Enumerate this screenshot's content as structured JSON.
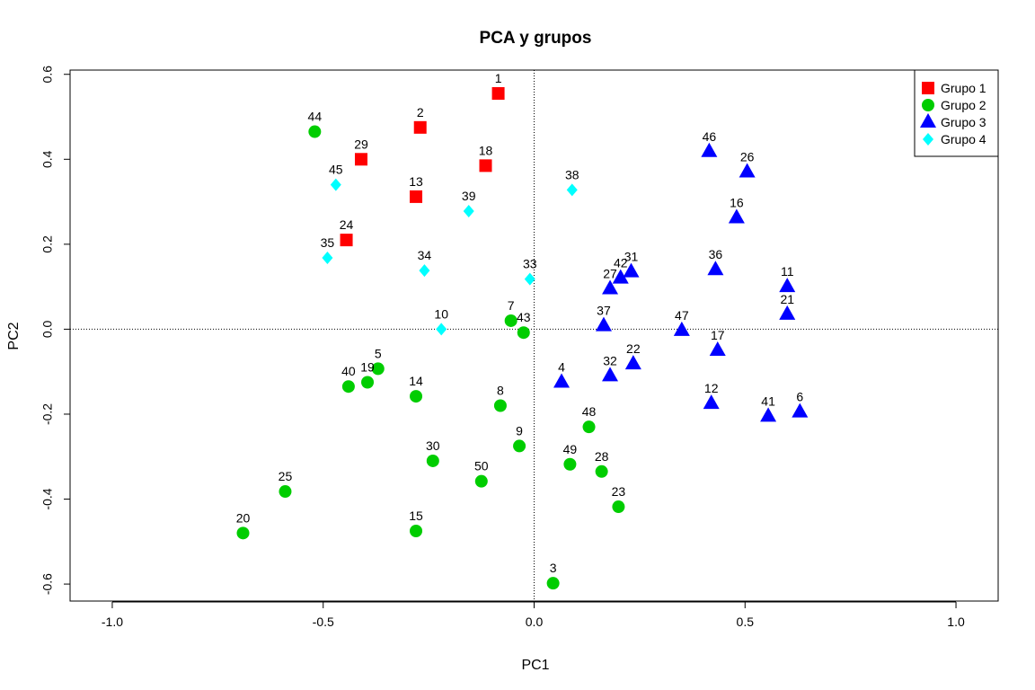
{
  "chart_data": {
    "type": "scatter",
    "title": "PCA y grupos",
    "xlabel": "PC1",
    "ylabel": "PC2",
    "xlim": [
      -1.1,
      1.1
    ],
    "ylim": [
      -0.64,
      0.61
    ],
    "xticks": [
      -1.0,
      -0.5,
      0.0,
      0.5,
      1.0
    ],
    "xtick_labels": [
      "-1.0",
      "-0.5",
      "0.0",
      "0.5",
      "1.0"
    ],
    "yticks": [
      -0.6,
      -0.4,
      -0.2,
      0.0,
      0.2,
      0.4,
      0.6
    ],
    "ytick_labels": [
      "-0.6",
      "-0.4",
      "-0.2",
      "0.0",
      "0.2",
      "0.4",
      "0.6"
    ],
    "reference_lines": {
      "x": 0,
      "y": 0,
      "style": "dotted"
    },
    "grid": false,
    "legend_position": "top-right",
    "series": [
      {
        "name": "Grupo 1",
        "color": "#FF0000",
        "marker": "square",
        "points": [
          {
            "label": "1",
            "x": -0.085,
            "y": 0.555
          },
          {
            "label": "2",
            "x": -0.27,
            "y": 0.475
          },
          {
            "label": "29",
            "x": -0.41,
            "y": 0.4
          },
          {
            "label": "18",
            "x": -0.115,
            "y": 0.385
          },
          {
            "label": "13",
            "x": -0.28,
            "y": 0.312
          },
          {
            "label": "24",
            "x": -0.445,
            "y": 0.21
          }
        ]
      },
      {
        "name": "Grupo 2",
        "color": "#00CD00",
        "marker": "circle",
        "points": [
          {
            "label": "44",
            "x": -0.52,
            "y": 0.465
          },
          {
            "label": "7",
            "x": -0.055,
            "y": 0.02
          },
          {
            "label": "43",
            "x": -0.025,
            "y": -0.008
          },
          {
            "label": "5",
            "x": -0.37,
            "y": -0.093
          },
          {
            "label": "19",
            "x": -0.395,
            "y": -0.125
          },
          {
            "label": "40",
            "x": -0.44,
            "y": -0.135
          },
          {
            "label": "14",
            "x": -0.28,
            "y": -0.158
          },
          {
            "label": "8",
            "x": -0.08,
            "y": -0.18
          },
          {
            "label": "48",
            "x": 0.13,
            "y": -0.23
          },
          {
            "label": "9",
            "x": -0.035,
            "y": -0.275
          },
          {
            "label": "30",
            "x": -0.24,
            "y": -0.31
          },
          {
            "label": "49",
            "x": 0.085,
            "y": -0.318
          },
          {
            "label": "28",
            "x": 0.16,
            "y": -0.335
          },
          {
            "label": "50",
            "x": -0.125,
            "y": -0.358
          },
          {
            "label": "25",
            "x": -0.59,
            "y": -0.382
          },
          {
            "label": "23",
            "x": 0.2,
            "y": -0.418
          },
          {
            "label": "15",
            "x": -0.28,
            "y": -0.475
          },
          {
            "label": "20",
            "x": -0.69,
            "y": -0.48
          },
          {
            "label": "3",
            "x": 0.045,
            "y": -0.598
          }
        ]
      },
      {
        "name": "Grupo 3",
        "color": "#0000FF",
        "marker": "triangle",
        "points": [
          {
            "label": "46",
            "x": 0.415,
            "y": 0.418
          },
          {
            "label": "26",
            "x": 0.505,
            "y": 0.37
          },
          {
            "label": "16",
            "x": 0.48,
            "y": 0.262
          },
          {
            "label": "36",
            "x": 0.43,
            "y": 0.14
          },
          {
            "label": "31",
            "x": 0.23,
            "y": 0.135
          },
          {
            "label": "42",
            "x": 0.205,
            "y": 0.12
          },
          {
            "label": "27",
            "x": 0.18,
            "y": 0.095
          },
          {
            "label": "11",
            "x": 0.6,
            "y": 0.1
          },
          {
            "label": "21",
            "x": 0.6,
            "y": 0.035
          },
          {
            "label": "37",
            "x": 0.165,
            "y": 0.008
          },
          {
            "label": "47",
            "x": 0.35,
            "y": -0.003
          },
          {
            "label": "17",
            "x": 0.435,
            "y": -0.05
          },
          {
            "label": "22",
            "x": 0.235,
            "y": -0.082
          },
          {
            "label": "32",
            "x": 0.18,
            "y": -0.11
          },
          {
            "label": "4",
            "x": 0.065,
            "y": -0.125
          },
          {
            "label": "12",
            "x": 0.42,
            "y": -0.175
          },
          {
            "label": "41",
            "x": 0.555,
            "y": -0.205
          },
          {
            "label": "6",
            "x": 0.63,
            "y": -0.195
          }
        ]
      },
      {
        "name": "Grupo 4",
        "color": "#00FFFF",
        "marker": "diamond",
        "points": [
          {
            "label": "45",
            "x": -0.47,
            "y": 0.34
          },
          {
            "label": "38",
            "x": 0.09,
            "y": 0.328
          },
          {
            "label": "39",
            "x": -0.155,
            "y": 0.278
          },
          {
            "label": "35",
            "x": -0.49,
            "y": 0.168
          },
          {
            "label": "34",
            "x": -0.26,
            "y": 0.138
          },
          {
            "label": "33",
            "x": -0.01,
            "y": 0.118
          },
          {
            "label": "10",
            "x": -0.22,
            "y": 0.0
          }
        ]
      }
    ]
  }
}
